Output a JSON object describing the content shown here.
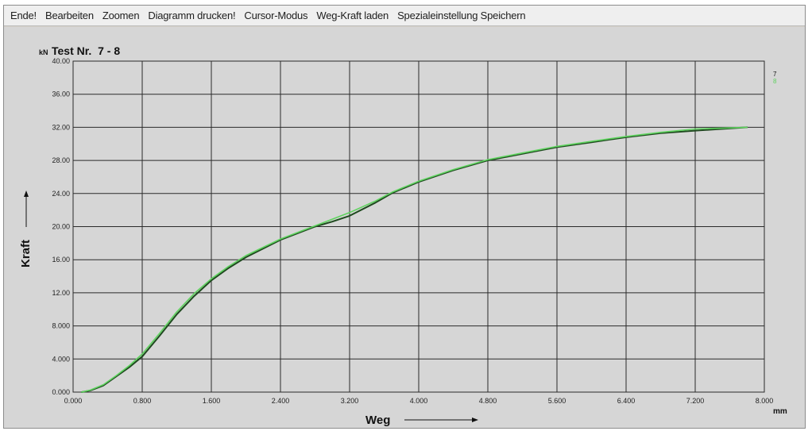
{
  "menubar": {
    "items": [
      "Ende!",
      "Bearbeiten",
      "Zoomen",
      "Diagramm drucken!",
      "Cursor-Modus",
      "Weg-Kraft laden",
      "Spezialeinstellung Speichern"
    ]
  },
  "chart": {
    "y_unit": "kN",
    "x_unit": "mm",
    "ylabel": "Kraft",
    "xlabel": "Weg",
    "colors": {
      "background": "#d6d6d6",
      "grid": "#2a2a2a",
      "series_7": "#1f4a1f",
      "series_8": "#5fd35f"
    }
  },
  "chart_data": {
    "type": "line",
    "title": "Test Nr.  7 - 8",
    "xlabel": "Weg",
    "ylabel": "Kraft",
    "xlim": [
      0,
      8
    ],
    "ylim": [
      0,
      40
    ],
    "x_ticks": [
      "0.000",
      "0.800",
      "1.600",
      "2.400",
      "3.200",
      "4.000",
      "4.800",
      "5.600",
      "6.400",
      "7.200",
      "8.000"
    ],
    "y_ticks": [
      "0.000",
      "4.000",
      "8.000",
      "12.00",
      "16.00",
      "20.00",
      "24.00",
      "28.00",
      "32.00",
      "36.00",
      "40.00"
    ],
    "grid": true,
    "legend_placement": "top-right",
    "series": [
      {
        "name": "7",
        "color": "#1f4a1f",
        "x": [
          0.1,
          0.2,
          0.35,
          0.5,
          0.65,
          0.8,
          1.0,
          1.2,
          1.4,
          1.6,
          1.8,
          2.0,
          2.4,
          2.8,
          3.0,
          3.2,
          3.5,
          3.7,
          4.0,
          4.4,
          4.8,
          5.2,
          5.6,
          6.0,
          6.4,
          6.8,
          7.2,
          7.5,
          7.8
        ],
        "y": [
          0.0,
          0.2,
          0.8,
          1.9,
          3.0,
          4.3,
          6.8,
          9.4,
          11.6,
          13.5,
          15.0,
          16.3,
          18.4,
          20.0,
          20.6,
          21.3,
          22.9,
          24.1,
          25.4,
          26.8,
          28.0,
          28.8,
          29.6,
          30.2,
          30.8,
          31.3,
          31.6,
          31.8,
          32.0
        ]
      },
      {
        "name": "8",
        "color": "#5fd35f",
        "x": [
          0.1,
          0.2,
          0.35,
          0.5,
          0.65,
          0.8,
          1.0,
          1.2,
          1.4,
          1.6,
          1.8,
          2.0,
          2.4,
          2.8,
          3.0,
          3.2,
          3.5,
          3.7,
          4.0,
          4.4,
          4.8,
          5.2,
          5.6,
          6.0,
          6.4,
          6.8,
          7.2,
          7.5,
          7.8
        ],
        "y": [
          0.0,
          0.25,
          0.9,
          2.0,
          3.2,
          4.6,
          7.1,
          9.7,
          11.9,
          13.7,
          15.2,
          16.5,
          18.5,
          20.1,
          20.9,
          21.7,
          23.1,
          24.2,
          25.5,
          26.9,
          28.1,
          28.9,
          29.7,
          30.3,
          30.9,
          31.4,
          31.8,
          31.9,
          32.0
        ]
      }
    ]
  }
}
